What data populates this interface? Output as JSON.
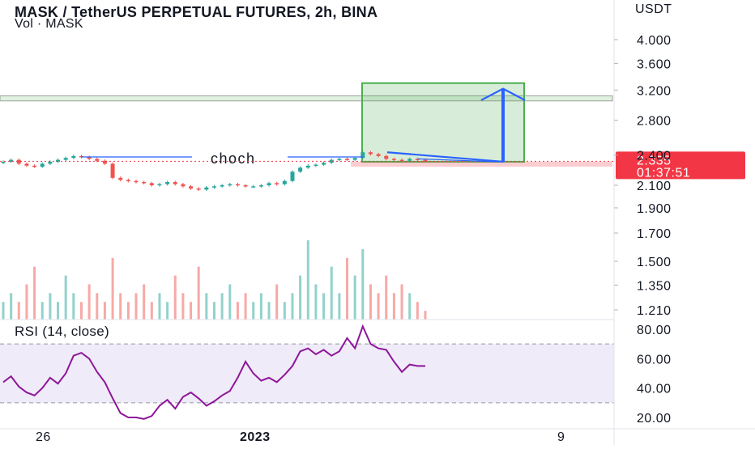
{
  "chart_data": [
    {
      "type": "candlestick",
      "title": "MASK / TetherUS PERPETUAL FUTURES, 2h, BINA",
      "subtitle": "Vol · MASK",
      "currency_label": "USDT",
      "scale": "log",
      "y_ticks": [
        4.0,
        3.6,
        3.2,
        2.8,
        2.4,
        2.1,
        1.9,
        1.7,
        1.5,
        1.35,
        1.21
      ],
      "y_tick_labels": [
        "4.000",
        "3.600",
        "3.200",
        "2.800",
        "2.400",
        "2.100",
        "1.900",
        "1.700",
        "1.500",
        "1.350",
        "1.210"
      ],
      "x_tick_labels": [
        "26",
        "2023",
        "9"
      ],
      "current_price": {
        "value": "2.335",
        "countdown": "01:37:51",
        "color": "#f23645"
      },
      "annotations": {
        "choch_label": "choch",
        "choch_level": 2.38,
        "target_zone": {
          "low": 2.33,
          "high": 3.3,
          "color": "#4caf50"
        },
        "resistance_band": {
          "low": 3.05,
          "high": 3.12
        },
        "stop_band": {
          "low": 2.31,
          "high": 2.33,
          "color": "#f23645"
        }
      },
      "closes": [
        2.33,
        2.35,
        2.31,
        2.29,
        2.28,
        2.31,
        2.33,
        2.35,
        2.37,
        2.39,
        2.38,
        2.36,
        2.34,
        2.31,
        2.17,
        2.15,
        2.14,
        2.13,
        2.12,
        2.1,
        2.11,
        2.13,
        2.11,
        2.09,
        2.07,
        2.06,
        2.08,
        2.09,
        2.1,
        2.11,
        2.1,
        2.09,
        2.09,
        2.1,
        2.12,
        2.11,
        2.14,
        2.23,
        2.27,
        2.29,
        2.3,
        2.32,
        2.35,
        2.36,
        2.35,
        2.37,
        2.43,
        2.41,
        2.39,
        2.36,
        2.35,
        2.34,
        2.36,
        2.35,
        2.335
      ],
      "up_color": "#26a69a",
      "down_color": "#ef5350"
    },
    {
      "type": "bar",
      "name": "volume",
      "values": [
        2,
        3,
        2,
        4,
        6,
        2,
        3,
        2,
        5,
        3,
        2,
        4,
        3,
        2,
        7,
        3,
        2,
        3,
        4,
        2,
        3,
        2,
        5,
        3,
        2,
        6,
        3,
        2,
        3,
        4,
        2,
        3,
        2,
        3,
        2,
        4,
        2,
        3,
        5,
        9,
        4,
        3,
        6,
        3,
        7,
        5,
        8,
        4,
        3,
        5,
        3,
        4,
        3,
        2,
        1
      ]
    },
    {
      "type": "line",
      "title": "RSI (14, close)",
      "y_ticks": [
        80,
        60,
        40,
        20
      ],
      "y_tick_labels": [
        "80.00",
        "60.00",
        "40.00",
        "20.00"
      ],
      "band": [
        30,
        70
      ],
      "line_color": "#8e1599",
      "band_color": "#7e57c2",
      "values": [
        44,
        48,
        41,
        37,
        35,
        40,
        47,
        43,
        50,
        62,
        64,
        60,
        51,
        44,
        33,
        23,
        20,
        20,
        19,
        21,
        28,
        32,
        26,
        34,
        37,
        33,
        28,
        31,
        35,
        38,
        47,
        58,
        50,
        45,
        47,
        44,
        49,
        55,
        65,
        67,
        63,
        66,
        62,
        65,
        74,
        67,
        82,
        70,
        67,
        66,
        58,
        51,
        56,
        55,
        55
      ]
    }
  ]
}
